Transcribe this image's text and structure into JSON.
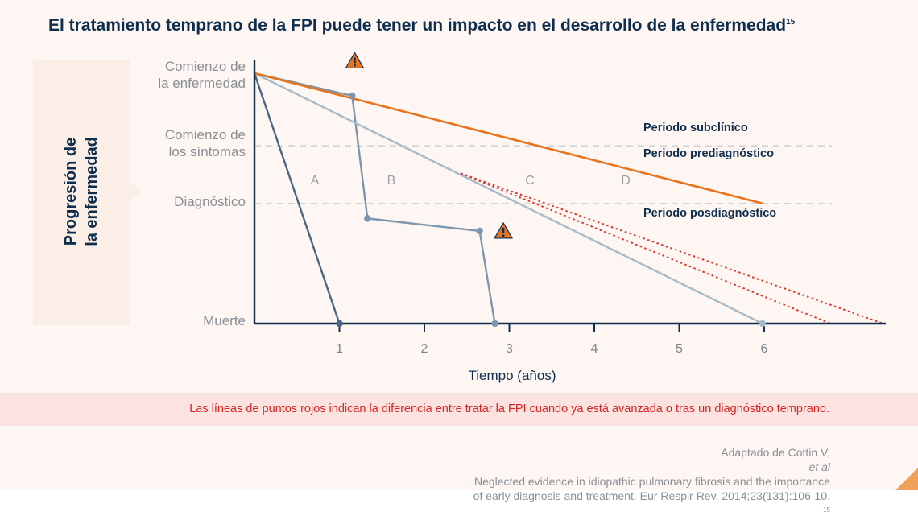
{
  "title": "El tratamiento temprano de la FPI puede tener un impacto en el desarrollo de la enfermedad",
  "title_sup": "15",
  "y_axis_title": [
    "Progresión de",
    "la enfermedad"
  ],
  "y_labels": {
    "onset": [
      "Comienzo de",
      "la enfermedad"
    ],
    "symptoms": [
      "Comienzo de",
      "los síntomas"
    ],
    "diagnosis": "Diagnóstico",
    "death": "Muerte"
  },
  "bands": {
    "subclinical": "Periodo subclínico",
    "prediagnostic": "Periodo prediagnóstico",
    "postdiagnostic": "Periodo posdiagnóstico"
  },
  "letters": [
    "A",
    "B",
    "C",
    "D"
  ],
  "note": "Las líneas de puntos rojos indican la diferencia entre tratar la FPI cuando ya está avanzada o tras un diagnóstico temprano.",
  "source": {
    "line1_pre": "Adaptado de Cottin V, ",
    "line1_em": "et al",
    "line1_post": ". Neglected evidence in idiopathic pulmonary fibrosis and the importance",
    "line2": "of early diagnosis and treatment. Eur Respir Rev. 2014;23(131):106-10.",
    "line2_sup": "15"
  },
  "colors": {
    "navy": "#0f2d4d",
    "slate": "#4a6785",
    "steel": "#7b96ae",
    "light": "#a9bac8",
    "orange": "#e8741e",
    "red_dotted": "#e0342b",
    "warning": "#e8741e"
  },
  "chart_data": {
    "type": "line",
    "title": "El tratamiento temprano de la FPI puede tener un impacto en el desarrollo de la enfermedad",
    "xlabel": "Tiempo (años)",
    "ylabel": "Progresión de la enfermedad",
    "x_ticks": [
      1,
      2,
      3,
      4,
      5,
      6
    ],
    "xlim": [
      0,
      7.4
    ],
    "y_categories": [
      "Muerte",
      "Diagnóstico",
      "Comienzo de los síntomas",
      "Comienzo de la enfermedad"
    ],
    "y_values": {
      "Muerte": 0,
      "Diagnóstico": 0.48,
      "Comienzo de los síntomas": 0.71,
      "Comienzo de la enfermedad": 1
    },
    "reference_lines": [
      {
        "y": 0.71,
        "style": "dashed"
      },
      {
        "y": 0.48,
        "style": "dashed"
      }
    ],
    "series": [
      {
        "label": "A",
        "style": "solid",
        "color": "#4a6785",
        "points": [
          [
            0,
            1
          ],
          [
            1.0,
            0
          ]
        ],
        "markers": [
          [
            1.0,
            0
          ]
        ]
      },
      {
        "label": "B",
        "style": "solid",
        "color": "#7b96ae",
        "points": [
          [
            0,
            1
          ],
          [
            1.15,
            0.91
          ],
          [
            1.33,
            0.42
          ],
          [
            2.65,
            0.37
          ],
          [
            2.83,
            0
          ]
        ],
        "markers": [
          [
            1.15,
            0.91
          ],
          [
            1.33,
            0.42
          ],
          [
            2.65,
            0.37
          ],
          [
            2.83,
            0
          ]
        ],
        "warnings": [
          [
            1.18,
            1.05
          ],
          [
            2.93,
            0.37
          ]
        ]
      },
      {
        "label": "C",
        "style": "solid",
        "color": "#a9bac8",
        "points": [
          [
            0,
            1
          ],
          [
            5.98,
            0
          ]
        ],
        "markers": [
          [
            5.98,
            0
          ]
        ]
      },
      {
        "label": "D",
        "style": "solid",
        "color": "#e8741e",
        "points": [
          [
            0,
            1
          ],
          [
            5.98,
            0.48
          ]
        ],
        "markers": []
      },
      {
        "style": "dotted",
        "color": "#e0342b",
        "points": [
          [
            2.43,
            0.6
          ],
          [
            6.78,
            0
          ]
        ]
      },
      {
        "style": "dotted",
        "color": "#e0342b",
        "points": [
          [
            2.43,
            0.6
          ],
          [
            7.4,
            0
          ]
        ]
      }
    ]
  }
}
